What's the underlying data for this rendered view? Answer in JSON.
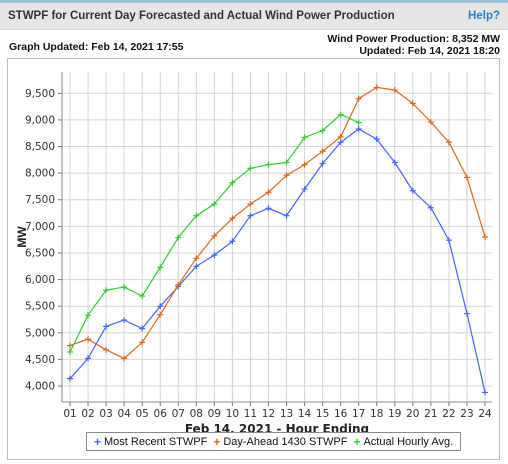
{
  "header": {
    "title": "STWPF for Current Day Forecasted and Actual Wind Power Production",
    "help_label": "Help?"
  },
  "info": {
    "graph_updated": "Graph Updated: Feb 14, 2021 17:55",
    "wind_power_production": "Wind Power Production: 8,352 MW",
    "updated": "Updated: Feb 14, 2021 18:20"
  },
  "colors": {
    "most_recent": "#4466ff",
    "day_ahead": "#d86a1e",
    "actual": "#2fd02f",
    "plot_bg": "#ffffff",
    "grid": "#d4d4d4"
  },
  "chart_data": {
    "type": "line",
    "title": "",
    "xlabel": "Feb 14, 2021 - Hour Ending",
    "ylabel": "MW",
    "ylim": [
      3700,
      9900
    ],
    "yticks": [
      4000,
      4500,
      5000,
      5500,
      6000,
      6500,
      7000,
      7500,
      8000,
      8500,
      9000,
      9500
    ],
    "ytick_labels": [
      "4,000",
      "4,500",
      "5,000",
      "5,500",
      "6,000",
      "6,500",
      "7,000",
      "7,500",
      "8,000",
      "8,500",
      "9,000",
      "9,500"
    ],
    "categories": [
      "01",
      "02",
      "03",
      "04",
      "05",
      "06",
      "07",
      "08",
      "09",
      "10",
      "11",
      "12",
      "13",
      "14",
      "15",
      "16",
      "17",
      "18",
      "19",
      "20",
      "21",
      "22",
      "23",
      "24"
    ],
    "grid": true,
    "legend_position": "bottom",
    "series": [
      {
        "name": "Most Recent STWPF",
        "color": "#4466ff",
        "values": [
          4140,
          4520,
          5120,
          5240,
          5080,
          5500,
          5870,
          6250,
          6460,
          6720,
          7200,
          7340,
          7200,
          7700,
          8180,
          8580,
          8830,
          8640,
          8200,
          7670,
          7350,
          6740,
          5360,
          3880
        ]
      },
      {
        "name": "Day-Ahead 1430 STWPF",
        "color": "#d86a1e",
        "values": [
          4760,
          4880,
          4680,
          4520,
          4820,
          5340,
          5900,
          6400,
          6820,
          7150,
          7420,
          7640,
          7960,
          8160,
          8410,
          8680,
          9400,
          9610,
          9560,
          9310,
          8960,
          8580,
          7920,
          6800
        ]
      },
      {
        "name": "Actual Hourly Avg.",
        "color": "#2fd02f",
        "values": [
          4640,
          5330,
          5800,
          5860,
          5690,
          6230,
          6790,
          7200,
          7420,
          7820,
          8090,
          8160,
          8200,
          8670,
          8800,
          9100,
          8950,
          null,
          null,
          null,
          null,
          null,
          null,
          null
        ]
      }
    ]
  }
}
